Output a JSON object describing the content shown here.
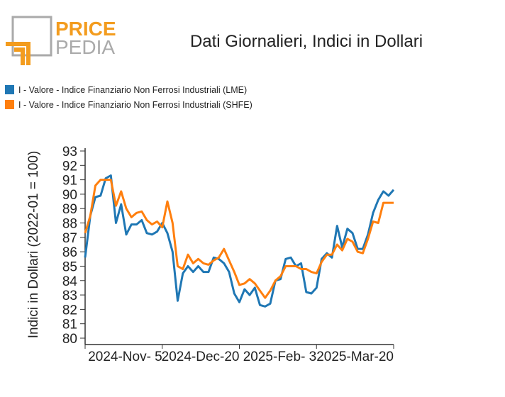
{
  "logo": {
    "top": "PRICE",
    "bottom": "PEDIA"
  },
  "chart_data": {
    "type": "line",
    "title": "Dati Giornalieri, Indici in Dollari",
    "y_label": "Indici in Dollari (2022-01 = 100)",
    "x": [
      "2024-09-21",
      "2024-09-24",
      "2024-09-27",
      "2024-09-30",
      "2024-10-03",
      "2024-10-06",
      "2024-10-09",
      "2024-10-12",
      "2024-10-15",
      "2024-10-18",
      "2024-10-21",
      "2024-10-24",
      "2024-10-27",
      "2024-10-30",
      "2024-11-02",
      "2024-11-05",
      "2024-11-08",
      "2024-11-11",
      "2024-11-14",
      "2024-11-17",
      "2024-11-20",
      "2024-11-23",
      "2024-11-26",
      "2024-11-29",
      "2024-12-02",
      "2024-12-05",
      "2024-12-08",
      "2024-12-11",
      "2024-12-14",
      "2024-12-17",
      "2024-12-20",
      "2024-12-23",
      "2024-12-26",
      "2024-12-29",
      "2025-01-01",
      "2025-01-04",
      "2025-01-07",
      "2025-01-10",
      "2025-01-13",
      "2025-01-16",
      "2025-01-19",
      "2025-01-22",
      "2025-01-25",
      "2025-01-28",
      "2025-01-31",
      "2025-02-03",
      "2025-02-06",
      "2025-02-09",
      "2025-02-12",
      "2025-02-15",
      "2025-02-18",
      "2025-02-21",
      "2025-02-24",
      "2025-02-27",
      "2025-03-02",
      "2025-03-05",
      "2025-03-08",
      "2025-03-11",
      "2025-03-14",
      "2025-03-17",
      "2025-03-20"
    ],
    "series": [
      {
        "name": "I - Valore - Indice Finanziario Non Ferrosi Industriali (LME)",
        "color": "#1f77b4",
        "values": [
          85.6,
          88.5,
          89.8,
          89.9,
          91.1,
          91.3,
          88,
          89.3,
          87.2,
          87.9,
          87.9,
          88.2,
          87.3,
          87.2,
          87.4,
          88,
          87.3,
          86,
          82.6,
          84.5,
          85,
          84.6,
          85,
          84.6,
          84.6,
          85.6,
          85.5,
          85.2,
          84.6,
          83.1,
          82.5,
          83.4,
          83,
          83.5,
          82.3,
          82.2,
          82.4,
          84,
          84.1,
          85.5,
          85.6,
          85,
          85.2,
          83.2,
          83.1,
          83.5,
          85.5,
          85.9,
          85.6,
          87.8,
          86.3,
          87.6,
          87.3,
          86.2,
          86.2,
          87.2,
          88.7,
          89.6,
          90.2,
          89.9,
          90.3
        ]
      },
      {
        "name": "I - Valore - Indice Finanziario Non Ferrosi Industriali (SHFE)",
        "color": "#ff7f0e",
        "values": [
          87.3,
          88.5,
          90.6,
          91,
          91,
          91,
          89.2,
          90.2,
          89,
          88.4,
          88.7,
          88.8,
          88.2,
          87.9,
          88.1,
          87.7,
          89.5,
          88,
          85,
          84.8,
          85.8,
          85.2,
          85.5,
          85.2,
          85.1,
          85.4,
          85.6,
          86.2,
          85.4,
          84.6,
          83.7,
          83.8,
          84.1,
          83.8,
          83.3,
          82.8,
          83.3,
          84,
          84.3,
          85,
          85,
          85,
          84.8,
          84.8,
          84.6,
          84.5,
          85.3,
          85.8,
          85.8,
          86.5,
          86.1,
          86.9,
          86.7,
          86,
          85.9,
          86.9,
          88.1,
          88,
          89.4,
          89.4,
          89.4
        ]
      }
    ],
    "xlim": [
      "2024-09-21",
      "2025-03-20"
    ],
    "xticks": [
      {
        "value": "2024-11-05",
        "label": "2024-Nov- 5"
      },
      {
        "value": "2024-12-20",
        "label": "2024-Dec-20"
      },
      {
        "value": "2025-02-03",
        "label": "2025-Feb- 3"
      },
      {
        "value": "2025-03-20",
        "label": "2025-Mar-20"
      }
    ],
    "ylim": [
      80,
      93
    ],
    "yticks": [
      80,
      81,
      82,
      83,
      84,
      85,
      86,
      87,
      88,
      89,
      90,
      91,
      92,
      93
    ],
    "legend": "top-left"
  }
}
